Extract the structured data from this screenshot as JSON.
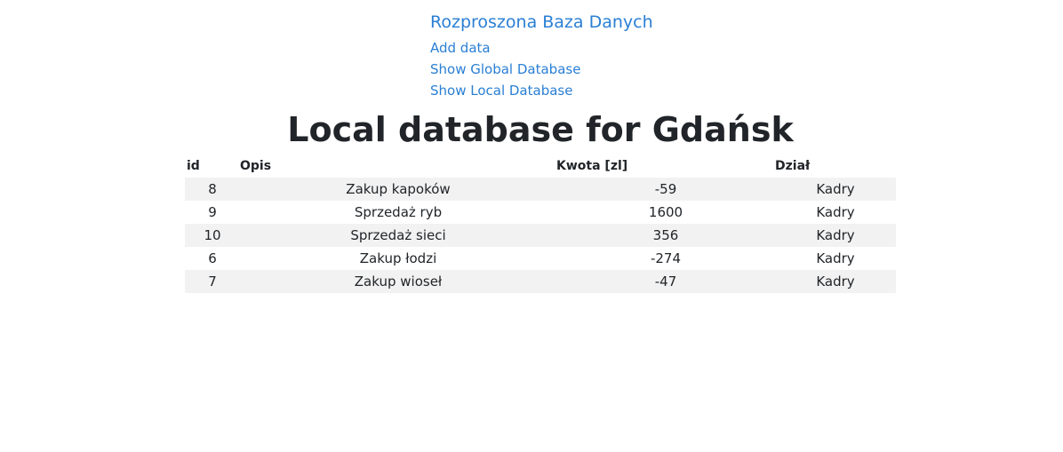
{
  "nav": {
    "brand": "Rozproszona Baza Danych",
    "links": [
      "Add data",
      "Show Global Database",
      "Show Local Database"
    ]
  },
  "page": {
    "title": "Local database for Gdańsk"
  },
  "table": {
    "headers": [
      "id",
      "Opis",
      "Kwota [zl]",
      "Dział"
    ],
    "rows": [
      [
        "8",
        "Zakup kapoków",
        "-59",
        "Kadry"
      ],
      [
        "9",
        "Sprzedaż ryb",
        "1600",
        "Kadry"
      ],
      [
        "10",
        "Sprzedaż sieci",
        "356",
        "Kadry"
      ],
      [
        "6",
        "Zakup łodzi",
        "-274",
        "Kadry"
      ],
      [
        "7",
        "Zakup wioseł",
        "-47",
        "Kadry"
      ]
    ]
  },
  "colors": {
    "link": "#2a7fd4",
    "stripe": "#f2f2f2",
    "text": "#212529"
  }
}
